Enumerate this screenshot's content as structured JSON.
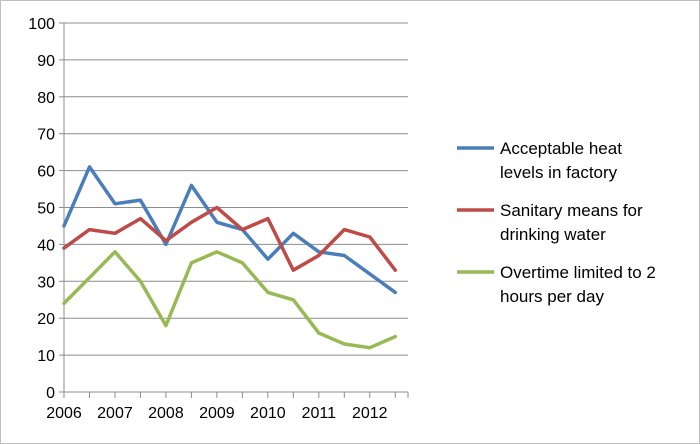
{
  "chart_data": {
    "type": "line",
    "title": "",
    "xlabel": "",
    "ylabel": "",
    "ylim": [
      0,
      100
    ],
    "y_ticks": [
      0,
      10,
      20,
      30,
      40,
      50,
      60,
      70,
      80,
      90,
      100
    ],
    "x_tick_labels": [
      "2006",
      "2007",
      "2008",
      "2009",
      "2010",
      "2011",
      "2012"
    ],
    "x": [
      2006,
      2006.5,
      2007,
      2007.5,
      2008,
      2008.5,
      2009,
      2009.5,
      2010,
      2010.5,
      2011,
      2011.5,
      2012,
      2012.5
    ],
    "grid": true,
    "legend_position": "right",
    "series": [
      {
        "name": "Acceptable heat levels in factory",
        "legend_lines": [
          "Acceptable heat",
          "levels in factory"
        ],
        "color": "#4a7ebb",
        "values": [
          45,
          61,
          51,
          52,
          40,
          56,
          46,
          44,
          36,
          43,
          38,
          37,
          32,
          27
        ]
      },
      {
        "name": "Sanitary means for drinking water",
        "legend_lines": [
          "Sanitary means for",
          "drinking water"
        ],
        "color": "#be4b48",
        "values": [
          39,
          44,
          43,
          47,
          41,
          46,
          50,
          44,
          47,
          33,
          37,
          44,
          42,
          33
        ]
      },
      {
        "name": "Overtime limited to 2 hours per day",
        "legend_lines": [
          "Overtime limited to 2",
          "hours per day"
        ],
        "color": "#98b954",
        "values": [
          24,
          31,
          38,
          30,
          18,
          35,
          38,
          35,
          27,
          25,
          16,
          13,
          12,
          15
        ]
      }
    ]
  }
}
